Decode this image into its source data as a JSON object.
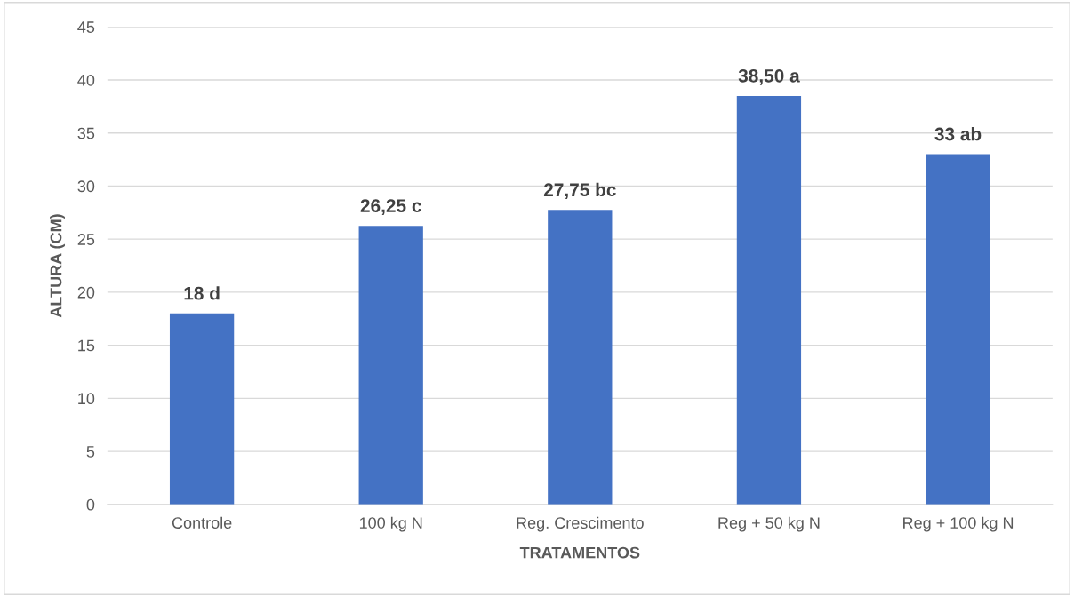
{
  "chart_data": {
    "type": "bar",
    "xlabel": "TRATAMENTOS",
    "ylabel": "ALTURA (CM)",
    "categories": [
      "Controle",
      "100 kg N",
      "Reg. Crescimento",
      "Reg + 50 kg N",
      "Reg + 100 kg N"
    ],
    "values": [
      18,
      26.25,
      27.75,
      38.5,
      33
    ],
    "value_labels": [
      "18 d",
      "26,25 c",
      "27,75 bc",
      "38,50 a",
      "33 ab"
    ],
    "color": "#4472c4",
    "ylim": [
      0,
      45
    ],
    "yticks": [
      0,
      5,
      10,
      15,
      20,
      25,
      30,
      35,
      40,
      45
    ],
    "grid": "y",
    "legend": false
  }
}
